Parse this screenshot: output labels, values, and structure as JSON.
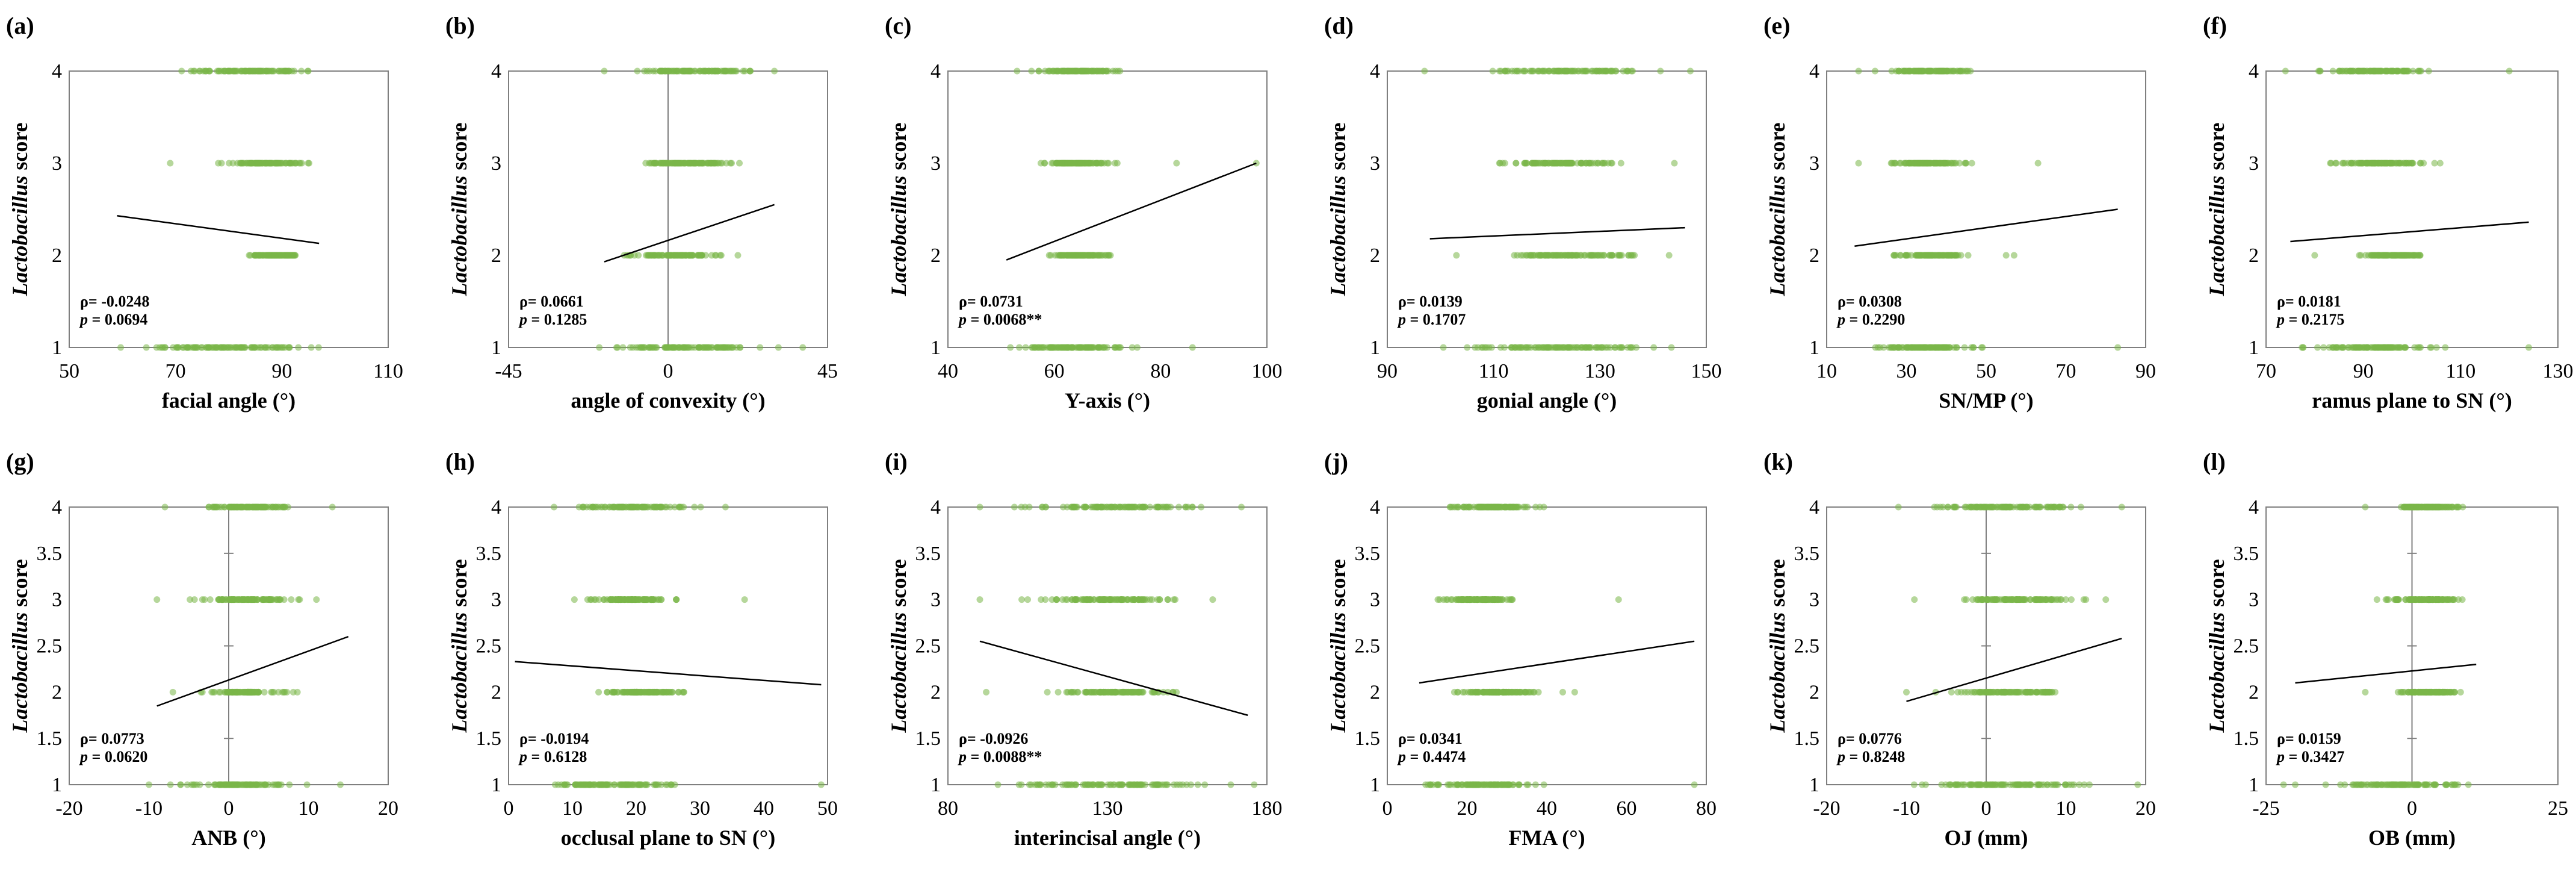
{
  "figure": {
    "y_axis_label_italic": "Lactobacillus",
    "y_axis_label_rest": " score",
    "point_color": "#7ab648",
    "frame_color": "#7f7f7f"
  },
  "chart_data": [
    {
      "panel": "(a)",
      "type": "scatter",
      "xlabel": "facial angle (°)",
      "xlim": [
        50,
        110
      ],
      "xticks": [
        50,
        70,
        90,
        110
      ],
      "ylim": [
        1,
        4
      ],
      "yticks": [
        1,
        2,
        3,
        4
      ],
      "yzero_axis": false,
      "rho": "ρ= -0.0248",
      "p": "p = 0.0694",
      "trend": {
        "x": [
          59,
          97
        ],
        "y": [
          2.43,
          2.13
        ]
      },
      "ranges": [
        {
          "y": 4,
          "x": [
            71,
            97
          ]
        },
        {
          "y": 3,
          "x": [
            78,
            96
          ]
        },
        {
          "y": 2,
          "x": [
            82,
            95
          ]
        },
        {
          "y": 1,
          "x": [
            59,
            98
          ]
        }
      ],
      "outliers": [
        {
          "x": 69,
          "y": 3
        }
      ]
    },
    {
      "panel": "(b)",
      "type": "scatter",
      "xlabel": "angle of convexity (°)",
      "xlim": [
        -45,
        45
      ],
      "xticks": [
        -45,
        0,
        45
      ],
      "ylim": [
        1,
        4
      ],
      "yticks": [
        1,
        2,
        3,
        4
      ],
      "yzero_axis": true,
      "rho": "ρ= 0.0661",
      "p": "p = 0.1285",
      "trend": {
        "x": [
          -18,
          30
        ],
        "y": [
          1.93,
          2.55
        ]
      },
      "ranges": [
        {
          "y": 4,
          "x": [
            -10,
            25
          ]
        },
        {
          "y": 3,
          "x": [
            -12,
            22
          ]
        },
        {
          "y": 2,
          "x": [
            -16,
            21
          ]
        },
        {
          "y": 1,
          "x": [
            -23,
            33
          ]
        }
      ],
      "outliers": [
        {
          "x": -18,
          "y": 4
        },
        {
          "x": 30,
          "y": 4
        },
        {
          "x": 38,
          "y": 1
        }
      ]
    },
    {
      "panel": "(c)",
      "type": "scatter",
      "xlabel": "Y-axis (°)",
      "xlim": [
        40,
        100
      ],
      "xticks": [
        40,
        60,
        80,
        100
      ],
      "ylim": [
        1,
        4
      ],
      "yticks": [
        1,
        2,
        3,
        4
      ],
      "yzero_axis": false,
      "rho": "ρ= 0.0731",
      "p": "p = 0.0068**",
      "trend": {
        "x": [
          51,
          98
        ],
        "y": [
          1.95,
          3.0
        ]
      },
      "ranges": [
        {
          "y": 4,
          "x": [
            55,
            74
          ]
        },
        {
          "y": 3,
          "x": [
            56,
            72
          ]
        },
        {
          "y": 2,
          "x": [
            57,
            72
          ]
        },
        {
          "y": 1,
          "x": [
            51,
            76
          ]
        }
      ],
      "outliers": [
        {
          "x": 53,
          "y": 4
        },
        {
          "x": 83,
          "y": 3
        },
        {
          "x": 98,
          "y": 3
        },
        {
          "x": 86,
          "y": 1
        }
      ]
    },
    {
      "panel": "(d)",
      "type": "scatter",
      "xlabel": "gonial angle (°)",
      "xlim": [
        90,
        150
      ],
      "xticks": [
        90,
        110,
        130,
        150
      ],
      "ylim": [
        1,
        4
      ],
      "yticks": [
        1,
        2,
        3,
        4
      ],
      "yzero_axis": false,
      "rho": "ρ= 0.0139",
      "p": "p = 0.1707",
      "trend": {
        "x": [
          98,
          146
        ],
        "y": [
          2.18,
          2.3
        ]
      },
      "ranges": [
        {
          "y": 4,
          "x": [
            106,
            142
          ]
        },
        {
          "y": 3,
          "x": [
            106,
            138
          ]
        },
        {
          "y": 2,
          "x": [
            109,
            140
          ]
        },
        {
          "y": 1,
          "x": [
            99,
            146
          ]
        }
      ],
      "outliers": [
        {
          "x": 97,
          "y": 4
        },
        {
          "x": 147,
          "y": 4
        },
        {
          "x": 144,
          "y": 3
        },
        {
          "x": 103,
          "y": 2
        },
        {
          "x": 143,
          "y": 2
        }
      ]
    },
    {
      "panel": "(e)",
      "type": "scatter",
      "xlabel": "SN/MP (°)",
      "xlim": [
        10,
        90
      ],
      "xticks": [
        10,
        30,
        50,
        70,
        90
      ],
      "ylim": [
        1,
        4
      ],
      "yticks": [
        1,
        2,
        3,
        4
      ],
      "yzero_axis": false,
      "rho": "ρ= 0.0308",
      "p": "p = 0.2290",
      "trend": {
        "x": [
          17,
          83
        ],
        "y": [
          2.1,
          2.5
        ]
      },
      "ranges": [
        {
          "y": 4,
          "x": [
            22,
            50
          ]
        },
        {
          "y": 3,
          "x": [
            24,
            47
          ]
        },
        {
          "y": 2,
          "x": [
            25,
            48
          ]
        },
        {
          "y": 1,
          "x": [
            17,
            52
          ]
        }
      ],
      "outliers": [
        {
          "x": 18,
          "y": 4
        },
        {
          "x": 18,
          "y": 3
        },
        {
          "x": 63,
          "y": 3
        },
        {
          "x": 55,
          "y": 2
        },
        {
          "x": 57,
          "y": 2
        },
        {
          "x": 83,
          "y": 1
        }
      ]
    },
    {
      "panel": "(f)",
      "type": "scatter",
      "xlabel": "ramus plane to SN (°)",
      "xlim": [
        70,
        130
      ],
      "xticks": [
        70,
        90,
        110,
        130
      ],
      "ylim": [
        1,
        4
      ],
      "yticks": [
        1,
        2,
        3,
        4
      ],
      "yzero_axis": false,
      "rho": "ρ= 0.0181",
      "p": "p = 0.2175",
      "trend": {
        "x": [
          75,
          124
        ],
        "y": [
          2.15,
          2.36
        ]
      },
      "ranges": [
        {
          "y": 4,
          "x": [
            79,
            107
          ]
        },
        {
          "y": 3,
          "x": [
            81,
            106
          ]
        },
        {
          "y": 2,
          "x": [
            88,
            105
          ]
        },
        {
          "y": 1,
          "x": [
            76,
            108
          ]
        }
      ],
      "outliers": [
        {
          "x": 74,
          "y": 4
        },
        {
          "x": 120,
          "y": 4
        },
        {
          "x": 80,
          "y": 2
        },
        {
          "x": 124,
          "y": 1
        }
      ]
    },
    {
      "panel": "(g)",
      "type": "scatter",
      "xlabel": "ANB (°)",
      "xlim": [
        -20,
        20
      ],
      "xticks": [
        -20,
        -10,
        0,
        10,
        20
      ],
      "ylim": [
        1,
        4
      ],
      "yticks": [
        1,
        1.5,
        2,
        2.5,
        3,
        3.5,
        4
      ],
      "yzero_axis": true,
      "rho": "ρ= 0.0773",
      "p": "p = 0.0620",
      "trend": {
        "x": [
          -9,
          15
        ],
        "y": [
          1.85,
          2.6
        ]
      },
      "ranges": [
        {
          "y": 4,
          "x": [
            -4,
            9
          ]
        },
        {
          "y": 3,
          "x": [
            -5,
            9
          ]
        },
        {
          "y": 2,
          "x": [
            -4,
            9
          ]
        },
        {
          "y": 1,
          "x": [
            -8,
            10
          ]
        }
      ],
      "outliers": [
        {
          "x": -8,
          "y": 4
        },
        {
          "x": 13,
          "y": 4
        },
        {
          "x": -9,
          "y": 3
        },
        {
          "x": 11,
          "y": 3
        },
        {
          "x": -7,
          "y": 2
        },
        {
          "x": -10,
          "y": 1
        },
        {
          "x": 14,
          "y": 1
        }
      ]
    },
    {
      "panel": "(h)",
      "type": "scatter",
      "xlabel": "occlusal plane to SN (°)",
      "xlim": [
        0,
        50
      ],
      "xticks": [
        0,
        10,
        20,
        30,
        40,
        50
      ],
      "ylim": [
        1,
        4
      ],
      "yticks": [
        1,
        1.5,
        2,
        2.5,
        3,
        3.5,
        4
      ],
      "yzero_axis": false,
      "rho": "ρ= -0.0194",
      "p": "p = 0.6128",
      "trend": {
        "x": [
          1,
          49
        ],
        "y": [
          2.33,
          2.08
        ]
      },
      "ranges": [
        {
          "y": 4,
          "x": [
            7,
            31
          ]
        },
        {
          "y": 3,
          "x": [
            10,
            28
          ]
        },
        {
          "y": 2,
          "x": [
            13,
            29
          ]
        },
        {
          "y": 1,
          "x": [
            3,
            30
          ]
        }
      ],
      "outliers": [
        {
          "x": 34,
          "y": 4
        },
        {
          "x": 37,
          "y": 3
        },
        {
          "x": 49,
          "y": 1
        }
      ]
    },
    {
      "panel": "(i)",
      "type": "scatter",
      "xlabel": "interincisal  angle (°)",
      "xlim": [
        80,
        180
      ],
      "xticks": [
        80,
        130,
        180
      ],
      "ylim": [
        1,
        4
      ],
      "yticks": [
        1,
        1.5,
        2,
        2.5,
        3,
        3.5,
        4
      ],
      "yzero_axis": false,
      "rho": "ρ= -0.0926",
      "p": "p = 0.0088**",
      "trend": {
        "x": [
          90,
          174
        ],
        "y": [
          2.55,
          1.75
        ]
      },
      "ranges": [
        {
          "y": 4,
          "x": [
            100,
            165
          ]
        },
        {
          "y": 3,
          "x": [
            102,
            158
          ]
        },
        {
          "y": 2,
          "x": [
            111,
            153
          ]
        },
        {
          "y": 1,
          "x": [
            92,
            172
          ]
        }
      ],
      "outliers": [
        {
          "x": 90,
          "y": 4
        },
        {
          "x": 172,
          "y": 4
        },
        {
          "x": 90,
          "y": 3
        },
        {
          "x": 163,
          "y": 3
        },
        {
          "x": 92,
          "y": 2
        },
        {
          "x": 176,
          "y": 1
        }
      ]
    },
    {
      "panel": "(j)",
      "type": "scatter",
      "xlabel": "FMA (°)",
      "xlim": [
        0,
        80
      ],
      "xticks": [
        0,
        20,
        40,
        60,
        80
      ],
      "ylim": [
        1,
        4
      ],
      "yticks": [
        1,
        1.5,
        2,
        2.5,
        3,
        3.5,
        4
      ],
      "yzero_axis": false,
      "rho": "ρ= 0.0341",
      "p": "p = 0.4474",
      "trend": {
        "x": [
          8,
          77
        ],
        "y": [
          2.1,
          2.55
        ]
      },
      "ranges": [
        {
          "y": 4,
          "x": [
            14,
            40
          ]
        },
        {
          "y": 3,
          "x": [
            11,
            35
          ]
        },
        {
          "y": 2,
          "x": [
            15,
            40
          ]
        },
        {
          "y": 1,
          "x": [
            8,
            41
          ]
        }
      ],
      "outliers": [
        {
          "x": 58,
          "y": 3
        },
        {
          "x": 44,
          "y": 2
        },
        {
          "x": 47,
          "y": 2
        },
        {
          "x": 77,
          "y": 1
        }
      ]
    },
    {
      "panel": "(k)",
      "type": "scatter",
      "xlabel": "OJ (mm)",
      "xlim": [
        -20,
        20
      ],
      "xticks": [
        -20,
        -10,
        0,
        10,
        20
      ],
      "ylim": [
        1,
        4
      ],
      "yticks": [
        1,
        1.5,
        2,
        2.5,
        3,
        3.5,
        4
      ],
      "yzero_axis": true,
      "rho": "ρ= 0.0776",
      "p": "p = 0.8248",
      "trend": {
        "x": [
          -10,
          17
        ],
        "y": [
          1.9,
          2.58
        ]
      },
      "ranges": [
        {
          "y": 4,
          "x": [
            -9,
            15
          ]
        },
        {
          "y": 3,
          "x": [
            -5,
            13
          ]
        },
        {
          "y": 2,
          "x": [
            -7,
            13
          ]
        },
        {
          "y": 1,
          "x": [
            -10,
            16
          ]
        }
      ],
      "outliers": [
        {
          "x": -11,
          "y": 4
        },
        {
          "x": 17,
          "y": 4
        },
        {
          "x": -9,
          "y": 3
        },
        {
          "x": 15,
          "y": 3
        },
        {
          "x": -10,
          "y": 2
        },
        {
          "x": 19,
          "y": 1
        }
      ]
    },
    {
      "panel": "(l)",
      "type": "scatter",
      "xlabel": "OB (mm)",
      "xlim": [
        -25,
        25
      ],
      "xticks": [
        -25,
        0,
        25
      ],
      "ylim": [
        1,
        4
      ],
      "yticks": [
        1,
        1.5,
        2,
        2.5,
        3,
        3.5,
        4
      ],
      "yzero_axis": true,
      "rho": "ρ= 0.0159",
      "p": "p = 0.3427",
      "trend": {
        "x": [
          -20,
          11
        ],
        "y": [
          2.1,
          2.3
        ]
      },
      "ranges": [
        {
          "y": 4,
          "x": [
            -5,
            10
          ]
        },
        {
          "y": 3,
          "x": [
            -5,
            10
          ]
        },
        {
          "y": 2,
          "x": [
            -4,
            10
          ]
        },
        {
          "y": 1,
          "x": [
            -15,
            11
          ]
        }
      ],
      "outliers": [
        {
          "x": -8,
          "y": 4
        },
        {
          "x": -6,
          "y": 3
        },
        {
          "x": -8,
          "y": 2
        },
        {
          "x": -20,
          "y": 1
        },
        {
          "x": -22,
          "y": 1
        }
      ]
    }
  ]
}
